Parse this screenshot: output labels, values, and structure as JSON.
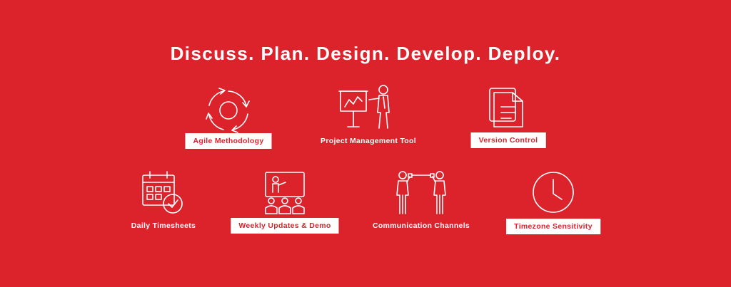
{
  "headline": "Discuss. Plan. Design. Develop. Deploy.",
  "features": [
    {
      "label": "Agile Methodology",
      "icon": "agile-cycle-icon",
      "style": "boxed"
    },
    {
      "label": "Project Management Tool",
      "icon": "presentation-board-icon",
      "style": "plain"
    },
    {
      "label": "Version Control",
      "icon": "documents-icon",
      "style": "boxed"
    },
    {
      "label": "Daily Timesheets",
      "icon": "calendar-check-icon",
      "style": "plain"
    },
    {
      "label": "Weekly Updates & Demo",
      "icon": "demo-audience-icon",
      "style": "boxed"
    },
    {
      "label": "Communication Channels",
      "icon": "tin-can-phone-icon",
      "style": "plain"
    },
    {
      "label": "Timezone Sensitivity",
      "icon": "clock-icon",
      "style": "boxed"
    }
  ],
  "colors": {
    "background": "#dc232c",
    "foreground": "#ffffff"
  }
}
